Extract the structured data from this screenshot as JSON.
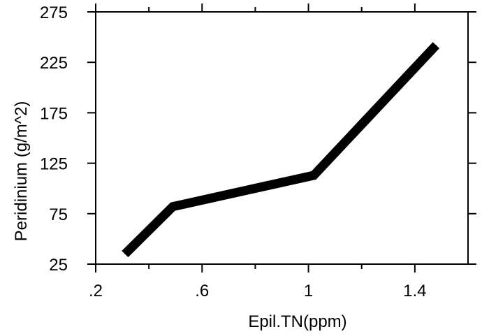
{
  "chart_data": {
    "type": "line",
    "title": "",
    "xlabel": "Epil.TN(ppm)",
    "ylabel": "Peridinium (g/m^2)",
    "xlim": [
      0.2,
      1.6
    ],
    "ylim": [
      25,
      275
    ],
    "x_ticks": [
      0.2,
      0.6,
      1.0,
      1.4
    ],
    "x_tick_labels": [
      ".2",
      ".6",
      "1",
      "1.4"
    ],
    "x_minor_ticks": [
      0.4,
      0.8,
      1.2
    ],
    "y_ticks": [
      25,
      75,
      125,
      175,
      225,
      275
    ],
    "y_tick_labels": [
      "25",
      "75",
      "125",
      "175",
      "225",
      "275"
    ],
    "grid": false,
    "series": [
      {
        "x": [
          0.31,
          0.49,
          1.02,
          1.48
        ],
        "y": [
          35,
          82,
          113,
          242
        ]
      }
    ]
  }
}
